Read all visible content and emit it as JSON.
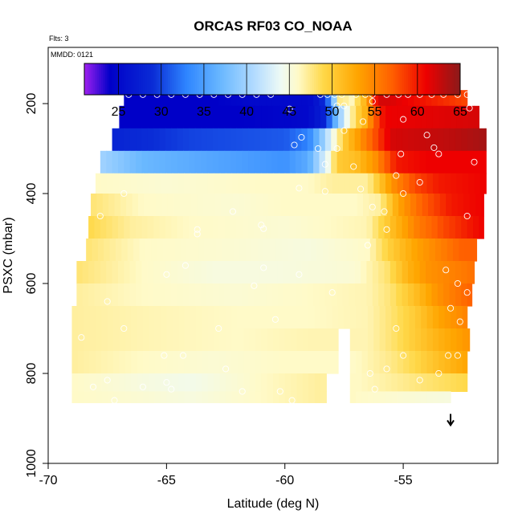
{
  "chart_data": {
    "type": "heatmap",
    "title": "ORCAS RF03 CO_NOAA",
    "flights_note": "Flts: 3",
    "date_note": "MMDD: 0121",
    "xlabel": "Latitude (deg N)",
    "ylabel": "PSXC (mbar)",
    "xlim": [
      -70,
      -51
    ],
    "ylim": [
      1000,
      75
    ],
    "x_ticks": [
      -70,
      -65,
      -60,
      -55
    ],
    "x_tick_labels": [
      "-70",
      "-65",
      "-60",
      "-55"
    ],
    "y_ticks": [
      200,
      400,
      600,
      800,
      1000
    ],
    "y_tick_labels": [
      "200",
      "400",
      "600",
      "800",
      "1000"
    ],
    "colorbar": {
      "min": 21,
      "max": 65,
      "ticks": [
        25,
        30,
        35,
        40,
        45,
        50,
        55,
        60,
        65
      ],
      "tick_labels": [
        "25",
        "30",
        "35",
        "40",
        "45",
        "50",
        "55",
        "60",
        "65"
      ],
      "stops": [
        {
          "v": 21,
          "color": "#a020f0"
        },
        {
          "v": 24,
          "color": "#0000c8"
        },
        {
          "v": 29,
          "color": "#0a2cd6"
        },
        {
          "v": 33,
          "color": "#2f86ff"
        },
        {
          "v": 37,
          "color": "#6ab8ff"
        },
        {
          "v": 41,
          "color": "#b4dcff"
        },
        {
          "v": 44,
          "color": "#eefaf5"
        },
        {
          "v": 46,
          "color": "#fffac8"
        },
        {
          "v": 49,
          "color": "#ffd848"
        },
        {
          "v": 53,
          "color": "#ffa500"
        },
        {
          "v": 57,
          "color": "#ff6000"
        },
        {
          "v": 61,
          "color": "#ee0000"
        },
        {
          "v": 65,
          "color": "#8b1a1a"
        }
      ]
    },
    "arrow": {
      "lat": -53.0,
      "from_p": 890,
      "to_p": 915,
      "note": "direction of flight track"
    },
    "layers": [
      {
        "p_top": 170,
        "p_bot": 205,
        "lat_min": -66.8,
        "lat_max": -52.3,
        "profile": [
          [
            -66.8,
            24
          ],
          [
            -63,
            24
          ],
          [
            -61.5,
            25
          ],
          [
            -59,
            25
          ],
          [
            -58.5,
            27
          ],
          [
            -58.1,
            33
          ],
          [
            -57.9,
            40
          ],
          [
            -57.6,
            50
          ],
          [
            -57.3,
            45
          ],
          [
            -56.6,
            52
          ],
          [
            -56.4,
            55
          ],
          [
            -56.2,
            60
          ],
          [
            -56.0,
            62
          ],
          [
            -55.7,
            62
          ],
          [
            -52.3,
            58
          ]
        ]
      },
      {
        "p_top": 205,
        "p_bot": 255,
        "lat_min": -67.0,
        "lat_max": -51.8,
        "profile": [
          [
            -67.0,
            24
          ],
          [
            -62,
            24
          ],
          [
            -59,
            25
          ],
          [
            -58.3,
            28
          ],
          [
            -57.9,
            36
          ],
          [
            -57.4,
            44
          ],
          [
            -57.0,
            49
          ],
          [
            -56.6,
            52
          ],
          [
            -56.2,
            57
          ],
          [
            -55.8,
            61
          ],
          [
            -51.8,
            62
          ]
        ]
      },
      {
        "p_top": 255,
        "p_bot": 305,
        "lat_min": -67.3,
        "lat_max": -51.5,
        "profile": [
          [
            -67.3,
            28
          ],
          [
            -64,
            30
          ],
          [
            -60,
            31
          ],
          [
            -59,
            33
          ],
          [
            -58.5,
            38
          ],
          [
            -58.0,
            44
          ],
          [
            -57.5,
            50
          ],
          [
            -57.0,
            53
          ],
          [
            -56.3,
            57
          ],
          [
            -55.5,
            62
          ],
          [
            -53,
            63
          ],
          [
            -51.5,
            64
          ]
        ]
      },
      {
        "p_top": 305,
        "p_bot": 355,
        "lat_min": -67.8,
        "lat_max": -51.5,
        "profile": [
          [
            -67.8,
            40
          ],
          [
            -66,
            37
          ],
          [
            -62,
            35
          ],
          [
            -60,
            34
          ],
          [
            -59,
            36
          ],
          [
            -58.6,
            40
          ],
          [
            -58.2,
            44
          ],
          [
            -57.8,
            50
          ],
          [
            -57.0,
            51
          ],
          [
            -56.2,
            54
          ],
          [
            -55.3,
            60
          ],
          [
            -54,
            61
          ],
          [
            -51.5,
            61
          ]
        ]
      },
      {
        "p_top": 355,
        "p_bot": 400,
        "lat_min": -68.0,
        "lat_max": -51.5,
        "profile": [
          [
            -68.0,
            46
          ],
          [
            -65,
            45.5
          ],
          [
            -61,
            46
          ],
          [
            -59,
            46
          ],
          [
            -58,
            47
          ],
          [
            -56.5,
            47
          ],
          [
            -55.5,
            54
          ],
          [
            -54.5,
            58
          ],
          [
            -53.5,
            60
          ],
          [
            -51.5,
            61
          ]
        ]
      },
      {
        "p_top": 400,
        "p_bot": 450,
        "lat_min": -68.2,
        "lat_max": -51.6,
        "profile": [
          [
            -68.2,
            48
          ],
          [
            -66,
            46
          ],
          [
            -62,
            45.5
          ],
          [
            -60,
            46
          ],
          [
            -57,
            46
          ],
          [
            -56,
            47
          ],
          [
            -55.2,
            53
          ],
          [
            -54.2,
            57
          ],
          [
            -53,
            60
          ],
          [
            -51.6,
            61
          ]
        ]
      },
      {
        "p_top": 450,
        "p_bot": 500,
        "lat_min": -68.3,
        "lat_max": -51.6,
        "profile": [
          [
            -68.3,
            49
          ],
          [
            -66.5,
            47
          ],
          [
            -64,
            46
          ],
          [
            -60,
            45.5
          ],
          [
            -56.5,
            46.5
          ],
          [
            -55.5,
            51
          ],
          [
            -54.5,
            55
          ],
          [
            -53.3,
            58
          ],
          [
            -52.2,
            60
          ],
          [
            -51.6,
            61
          ]
        ]
      },
      {
        "p_top": 500,
        "p_bot": 550,
        "lat_min": -68.4,
        "lat_max": -51.9,
        "profile": [
          [
            -68.4,
            48
          ],
          [
            -66,
            46
          ],
          [
            -62,
            45.5
          ],
          [
            -59,
            45
          ],
          [
            -56.5,
            46
          ],
          [
            -55.5,
            50
          ],
          [
            -54.5,
            53
          ],
          [
            -53.5,
            55
          ],
          [
            -52.5,
            57
          ],
          [
            -51.9,
            57
          ]
        ]
      },
      {
        "p_top": 550,
        "p_bot": 600,
        "lat_min": -68.8,
        "lat_max": -52.0,
        "profile": [
          [
            -68.8,
            48
          ],
          [
            -66,
            46
          ],
          [
            -63,
            45
          ],
          [
            -60,
            45
          ],
          [
            -57,
            45.5
          ],
          [
            -55.7,
            48
          ],
          [
            -54.8,
            52
          ],
          [
            -54,
            54
          ],
          [
            -53,
            55
          ],
          [
            -52.0,
            56
          ]
        ]
      },
      {
        "p_top": 600,
        "p_bot": 650,
        "lat_min": -68.8,
        "lat_max": -52.1,
        "profile": [
          [
            -68.8,
            47
          ],
          [
            -66,
            46
          ],
          [
            -62,
            45.5
          ],
          [
            -59,
            46
          ],
          [
            -56.5,
            46.5
          ],
          [
            -55.5,
            48
          ],
          [
            -54.5,
            51
          ],
          [
            -53.6,
            54
          ],
          [
            -52.6,
            56
          ],
          [
            -52.1,
            57
          ]
        ]
      },
      {
        "p_top": 650,
        "p_bot": 700,
        "lat_min": -69.0,
        "lat_max": -52.3,
        "profile": [
          [
            -69.0,
            47
          ],
          [
            -66,
            46.5
          ],
          [
            -62,
            46
          ],
          [
            -59,
            46
          ],
          [
            -56.5,
            46.5
          ],
          [
            -55.5,
            48
          ],
          [
            -54.5,
            50
          ],
          [
            -53.5,
            53
          ],
          [
            -52.3,
            55
          ]
        ]
      },
      {
        "p_top": 700,
        "p_bot": 750,
        "lat_min": -69.0,
        "lat_max": -52.2,
        "gap": [
          -57.7,
          -57.3
        ],
        "profile": [
          [
            -69.0,
            47
          ],
          [
            -66,
            46.5
          ],
          [
            -62,
            46
          ],
          [
            -59,
            46.5
          ],
          [
            -56.5,
            46.5
          ],
          [
            -55.5,
            48
          ],
          [
            -54.5,
            50
          ],
          [
            -53.5,
            52
          ],
          [
            -52.2,
            54
          ]
        ]
      },
      {
        "p_top": 750,
        "p_bot": 800,
        "lat_min": -69.0,
        "lat_max": -52.3,
        "gap": [
          -57.7,
          -57.3
        ],
        "profile": [
          [
            -69.0,
            47
          ],
          [
            -66,
            46
          ],
          [
            -63,
            45.5
          ],
          [
            -60,
            46
          ],
          [
            -57,
            46
          ],
          [
            -55.5,
            47.5
          ],
          [
            -54.5,
            49
          ],
          [
            -53.5,
            51
          ],
          [
            -52.3,
            53
          ]
        ]
      },
      {
        "p_top": 800,
        "p_bot": 840,
        "lat_min": -69.0,
        "lat_max": -52.3,
        "gap": [
          -58.2,
          -57.3
        ],
        "profile": [
          [
            -69.0,
            46
          ],
          [
            -66,
            45
          ],
          [
            -64,
            44.5
          ],
          [
            -61,
            46
          ],
          [
            -58.5,
            47
          ],
          [
            -57,
            46
          ],
          [
            -55.5,
            47
          ],
          [
            -54,
            48
          ],
          [
            -52.3,
            49
          ]
        ]
      },
      {
        "p_top": 840,
        "p_bot": 865,
        "lat_min": -69.0,
        "lat_max": -53.0,
        "gap": [
          -58.2,
          -57.3
        ],
        "profile": [
          [
            -69.0,
            46
          ],
          [
            -66,
            45.5
          ],
          [
            -64,
            45
          ],
          [
            -61,
            46
          ],
          [
            -58.5,
            47
          ],
          [
            -57,
            46
          ],
          [
            -55,
            45.5
          ],
          [
            -53.0,
            45
          ]
        ]
      }
    ],
    "points": [
      [
        -66.6,
        180
      ],
      [
        -66.0,
        180
      ],
      [
        -65.4,
        180
      ],
      [
        -64.8,
        180
      ],
      [
        -64.2,
        180
      ],
      [
        -63.6,
        180
      ],
      [
        -63.0,
        180
      ],
      [
        -62.4,
        180
      ],
      [
        -61.8,
        180
      ],
      [
        -61.2,
        180
      ],
      [
        -60.6,
        180
      ],
      [
        -58.5,
        180
      ],
      [
        -58.2,
        180
      ],
      [
        -57.9,
        180
      ],
      [
        -57.6,
        180
      ],
      [
        -57.0,
        180
      ],
      [
        -56.6,
        180
      ],
      [
        -56.3,
        180
      ],
      [
        -55.7,
        180
      ],
      [
        -55.2,
        180
      ],
      [
        -54.8,
        180
      ],
      [
        -54.3,
        180
      ],
      [
        -53.8,
        180
      ],
      [
        -53.3,
        180
      ],
      [
        -52.7,
        180
      ],
      [
        -52.3,
        180
      ],
      [
        -56.3,
        195
      ],
      [
        -57.8,
        205
      ],
      [
        -57.5,
        205
      ],
      [
        -59.8,
        212
      ],
      [
        -52.2,
        210
      ],
      [
        -55.0,
        235
      ],
      [
        -56.7,
        240
      ],
      [
        -57.5,
        260
      ],
      [
        -59.3,
        275
      ],
      [
        -53.7,
        298
      ],
      [
        -54.0,
        270
      ],
      [
        -58.6,
        300
      ],
      [
        -57.8,
        300
      ],
      [
        -52.0,
        330
      ],
      [
        -59.6,
        292
      ],
      [
        -53.5,
        312
      ],
      [
        -55.1,
        312
      ],
      [
        -58.3,
        335
      ],
      [
        -57.1,
        340
      ],
      [
        -54.3,
        375
      ],
      [
        -55.3,
        360
      ],
      [
        -56.8,
        390
      ],
      [
        -58.3,
        395
      ],
      [
        -59.4,
        388
      ],
      [
        -66.8,
        400
      ],
      [
        -67.8,
        450
      ],
      [
        -62.2,
        440
      ],
      [
        -55.0,
        400
      ],
      [
        -56.3,
        430
      ],
      [
        -55.8,
        440
      ],
      [
        -63.7,
        480
      ],
      [
        -61.0,
        470
      ],
      [
        -60.9,
        478
      ],
      [
        -63.7,
        490
      ],
      [
        -55.7,
        480
      ],
      [
        -52.3,
        450
      ],
      [
        -56.5,
        515
      ],
      [
        -64.2,
        560
      ],
      [
        -60.9,
        565
      ],
      [
        -65.0,
        580
      ],
      [
        -59.4,
        580
      ],
      [
        -53.2,
        570
      ],
      [
        -61.3,
        605
      ],
      [
        -52.7,
        600
      ],
      [
        -67.5,
        640
      ],
      [
        -58.0,
        620
      ],
      [
        -53.0,
        655
      ],
      [
        -52.3,
        620
      ],
      [
        -52.6,
        685
      ],
      [
        -66.8,
        700
      ],
      [
        -62.8,
        700
      ],
      [
        -60.4,
        680
      ],
      [
        -55.3,
        700
      ],
      [
        -64.3,
        760
      ],
      [
        -65.1,
        760
      ],
      [
        -68.6,
        720
      ],
      [
        -55.0,
        760
      ],
      [
        -53.1,
        760
      ],
      [
        -52.7,
        760
      ],
      [
        -62.5,
        790
      ],
      [
        -55.7,
        790
      ],
      [
        -56.4,
        800
      ],
      [
        -53.5,
        800
      ],
      [
        -67.5,
        815
      ],
      [
        -68.1,
        830
      ],
      [
        -65.0,
        820
      ],
      [
        -66.0,
        830
      ],
      [
        -64.8,
        835
      ],
      [
        -61.8,
        840
      ],
      [
        -60.2,
        840
      ],
      [
        -56.2,
        835
      ],
      [
        -54.3,
        815
      ],
      [
        -67.2,
        860
      ],
      [
        -59.7,
        860
      ]
    ]
  }
}
